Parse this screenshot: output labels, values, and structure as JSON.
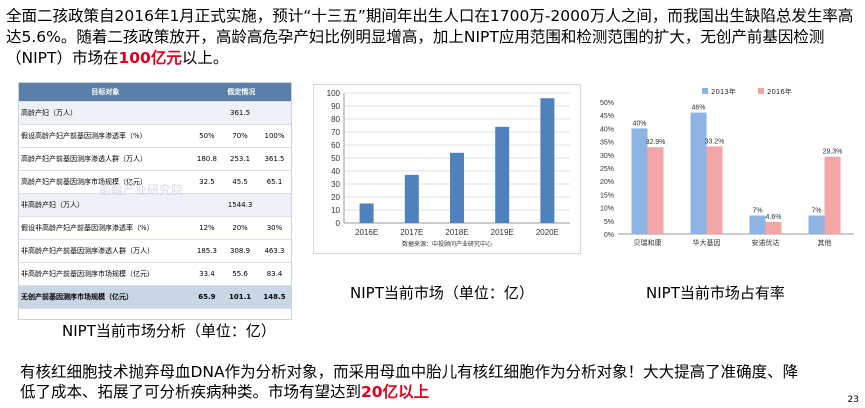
{
  "intro": {
    "p1": "全面二孩政策自2016年1月正式实施，预计“十三五”期间年出生人口在1700万-2000万人之间，而我国出生缺陷总发生率高达5.6%。随着二孩政策放开，高龄高危孕产妇比例明显增高，加上NIPT应用范围和检测范围的扩大，无创产前基因检测（NIPT）市场在",
    "highlight": "100亿元",
    "p2": "以上。"
  },
  "table": {
    "headers": [
      "目标对象",
      "假定情况"
    ],
    "rows": [
      {
        "label": "高龄产妇（万人）",
        "c1": "",
        "c2": "361.5",
        "c3": "",
        "group": true
      },
      {
        "label": "假设高龄产妇产前基因测序渗透率（%）",
        "c1": "50%",
        "c2": "70%",
        "c3": "100%"
      },
      {
        "label": "高龄产妇产前基因测序渗透人群（万人）",
        "c1": "180.8",
        "c2": "253.1",
        "c3": "361.5"
      },
      {
        "label": "高龄产妇产前基因测序市场规模（亿元）",
        "c1": "32.5",
        "c2": "45.5",
        "c3": "65.1"
      },
      {
        "label": "非高龄产妇（万人）",
        "c1": "",
        "c2": "1544.3",
        "c3": "",
        "group": true
      },
      {
        "label": "假设非高龄产妇产前基因测序渗透率（%）",
        "c1": "12%",
        "c2": "20%",
        "c3": "30%"
      },
      {
        "label": "非高龄产妇产前基因测序渗透人群（万人）",
        "c1": "185.3",
        "c2": "308.9",
        "c3": "463.3"
      },
      {
        "label": "非高龄产妇产前基因测序市场规模（亿元）",
        "c1": "33.4",
        "c2": "55.6",
        "c3": "83.4"
      },
      {
        "label": "无创产前基因测序市场规模（亿元）",
        "c1": "65.9",
        "c2": "101.1",
        "c3": "148.5",
        "total": true
      }
    ],
    "caption": "NIPT当前市场分析（单位：亿）"
  },
  "chart_data": [
    {
      "type": "bar",
      "categories": [
        "2016E",
        "2017E",
        "2018E",
        "2019E",
        "2020E"
      ],
      "values": [
        15,
        37,
        54,
        74,
        96
      ],
      "ylim": [
        0,
        100
      ],
      "yticks": [
        0,
        10,
        20,
        30,
        40,
        50,
        60,
        70,
        80,
        90,
        100
      ],
      "source": "数据来源：中投顾问产业研究中心",
      "caption": "NIPT当前市场",
      "caption_unit": "（单位：亿）",
      "color": "#4f81bd"
    },
    {
      "type": "bar",
      "categories": [
        "贝瑞和康",
        "华大基因",
        "安诺优达",
        "其他"
      ],
      "series": [
        {
          "name": "2013年",
          "values": [
            40,
            46,
            7,
            7
          ],
          "color": "#8eb4e3"
        },
        {
          "name": "2016年",
          "values": [
            32.9,
            33.2,
            4.6,
            29.3
          ],
          "color": "#f2a6a6"
        }
      ],
      "labels": [
        [
          "40%",
          "46%",
          "7%",
          "7%"
        ],
        [
          "32.9%",
          "33.2%",
          "4.6%",
          "29.3%"
        ]
      ],
      "ylim": [
        0,
        50
      ],
      "yticks": [
        "0%",
        "5%",
        "10%",
        "15%",
        "20%",
        "25%",
        "30%",
        "35%",
        "40%",
        "45%",
        "50%"
      ],
      "legend_position": "top",
      "caption": "NIPT当前市场占有率"
    }
  ],
  "bottom": {
    "text": "有核红细胞技术抛弃母血DNA作为分析对象，而采用母血中胎儿有核红细胞作为分析对象！大大提高了准确度、降低了成本、拓展了可分析疾病种类。市场有望达到",
    "highlight": "20亿以上"
  },
  "page_number": "23",
  "watermark": "前瞻产业研究院"
}
